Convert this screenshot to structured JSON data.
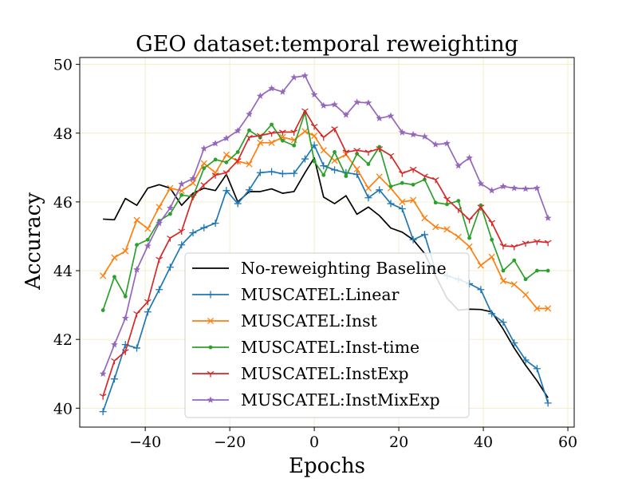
{
  "chart_data": {
    "type": "line",
    "title": "GEO dataset:temporal reweighting",
    "xlabel": "Epochs",
    "ylabel": "Accuracy",
    "xlim": [
      -55.5,
      61.5
    ],
    "ylim": [
      39.45,
      50.2
    ],
    "xticks": [
      -40,
      -20,
      0,
      20,
      40,
      60
    ],
    "yticks": [
      40,
      42,
      44,
      46,
      48,
      50
    ],
    "grid": true,
    "legend_position": "bottom-center",
    "x": [
      -50,
      -47.3,
      -44.7,
      -42,
      -39.4,
      -36.7,
      -34.1,
      -31.4,
      -28.7,
      -26.1,
      -23.4,
      -20.8,
      -18.1,
      -15.4,
      -12.8,
      -10.1,
      -7.5,
      -4.8,
      -2.2,
      0,
      2.2,
      4.8,
      7.5,
      10.1,
      12.8,
      15.4,
      18.1,
      20.8,
      23.4,
      26.1,
      28.7,
      31.4,
      34.1,
      36.7,
      39.4,
      42,
      44.7,
      47.3,
      50,
      52.7,
      55.3
    ],
    "series": [
      {
        "name": "No-reweighting Baseline",
        "color": "#000000",
        "marker": "none",
        "values": [
          45.5,
          45.48,
          46.1,
          45.9,
          46.4,
          46.5,
          46.4,
          45.9,
          46.25,
          46.4,
          46.33,
          46.8,
          46.0,
          46.3,
          46.3,
          46.38,
          46.25,
          46.3,
          46.85,
          47.28,
          46.14,
          45.95,
          46.18,
          45.64,
          45.85,
          45.6,
          45.24,
          45.12,
          44.9,
          44.5,
          43.85,
          43.2,
          42.85,
          42.88,
          42.87,
          42.8,
          42.3,
          41.75,
          41.25,
          40.8,
          40.3
        ]
      },
      {
        "name": "MUSCATEL:Linear",
        "color": "#1f77b4",
        "marker": "plus",
        "values": [
          39.9,
          40.85,
          41.85,
          41.75,
          42.8,
          43.45,
          44.1,
          44.75,
          45.1,
          45.25,
          45.38,
          46.33,
          45.95,
          46.35,
          46.85,
          46.88,
          46.82,
          46.83,
          47.25,
          47.65,
          47.05,
          46.93,
          46.85,
          46.8,
          46.12,
          46.35,
          45.95,
          45.8,
          44.9,
          45.05,
          44.0,
          43.85,
          43.75,
          43.62,
          43.45,
          42.75,
          42.5,
          41.9,
          41.4,
          41.15,
          40.15
        ]
      },
      {
        "name": "MUSCATEL:Inst",
        "color": "#ff7f0e",
        "marker": "x",
        "values": [
          43.85,
          44.38,
          44.57,
          45.47,
          45.22,
          45.85,
          46.4,
          46.32,
          46.55,
          47.12,
          46.85,
          47.37,
          47.18,
          47.1,
          47.72,
          47.72,
          47.88,
          47.8,
          48.05,
          47.92,
          47.5,
          47.2,
          47.38,
          46.95,
          46.4,
          46.73,
          46.4,
          46.0,
          46.05,
          45.53,
          45.27,
          45.2,
          44.98,
          44.7,
          44.15,
          44.4,
          43.7,
          43.6,
          43.3,
          42.9,
          42.9
        ]
      },
      {
        "name": "MUSCATEL:Inst-time",
        "color": "#2ca02c",
        "marker": "dot",
        "values": [
          42.85,
          43.82,
          43.25,
          44.75,
          44.9,
          45.45,
          45.65,
          46.2,
          46.15,
          46.98,
          47.23,
          47.15,
          47.45,
          48.08,
          47.87,
          48.25,
          47.78,
          47.64,
          48.6,
          47.18,
          46.78,
          47.45,
          46.75,
          47.4,
          47.1,
          47.6,
          46.45,
          46.55,
          46.5,
          46.65,
          45.98,
          45.93,
          46.03,
          44.95,
          45.9,
          44.9,
          44.0,
          44.3,
          43.75,
          44.0,
          44.0
        ]
      },
      {
        "name": "MUSCATEL:InstExp",
        "color": "#d62728",
        "marker": "tri",
        "values": [
          40.35,
          41.38,
          41.65,
          42.75,
          43.1,
          44.33,
          44.95,
          45.15,
          46.15,
          46.5,
          46.78,
          46.85,
          47.2,
          47.88,
          47.93,
          48.0,
          48.03,
          48.03,
          48.65,
          48.2,
          47.88,
          48.13,
          47.45,
          47.5,
          47.45,
          47.55,
          47.35,
          46.83,
          46.95,
          46.75,
          46.65,
          46.08,
          45.78,
          45.48,
          45.85,
          45.4,
          44.72,
          44.7,
          44.8,
          44.85,
          44.82
        ]
      },
      {
        "name": "MUSCATEL:InstMixExp",
        "color": "#9467bd",
        "marker": "star",
        "values": [
          41.0,
          41.85,
          42.62,
          44.03,
          44.72,
          45.38,
          45.82,
          46.52,
          46.68,
          47.55,
          47.7,
          47.85,
          48.07,
          48.55,
          49.08,
          49.3,
          49.2,
          49.62,
          49.67,
          49.12,
          48.8,
          48.83,
          48.53,
          48.9,
          48.88,
          48.43,
          48.5,
          48.02,
          47.96,
          47.9,
          47.67,
          47.7,
          47.05,
          47.28,
          46.53,
          46.33,
          46.45,
          46.4,
          46.38,
          46.4,
          45.53
        ]
      }
    ]
  }
}
